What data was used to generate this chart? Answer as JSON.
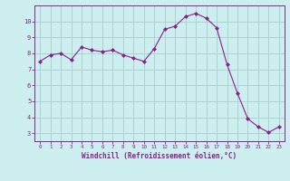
{
  "x": [
    0,
    1,
    2,
    3,
    4,
    5,
    6,
    7,
    8,
    9,
    10,
    11,
    12,
    13,
    14,
    15,
    16,
    17,
    18,
    19,
    20,
    21,
    22,
    23
  ],
  "y": [
    7.5,
    7.9,
    8.0,
    7.6,
    8.4,
    8.2,
    8.1,
    8.2,
    7.9,
    7.7,
    7.5,
    8.3,
    9.5,
    9.7,
    10.3,
    10.5,
    10.2,
    9.6,
    7.3,
    5.5,
    3.9,
    3.4,
    3.05,
    3.4
  ],
  "line_color": "#882288",
  "marker": "D",
  "marker_size": 2.0,
  "bg_color": "#cceeee",
  "grid_color": "#aacccc",
  "xlabel": "Windchill (Refroidissement éolien,°C)",
  "xlabel_color": "#882288",
  "tick_color": "#882288",
  "label_color": "#882288",
  "ylim": [
    2.5,
    11.0
  ],
  "xlim": [
    -0.5,
    23.5
  ],
  "yticks": [
    3,
    4,
    5,
    6,
    7,
    8,
    9,
    10
  ],
  "xticks": [
    0,
    1,
    2,
    3,
    4,
    5,
    6,
    7,
    8,
    9,
    10,
    11,
    12,
    13,
    14,
    15,
    16,
    17,
    18,
    19,
    20,
    21,
    22,
    23
  ],
  "linewidth": 0.8
}
